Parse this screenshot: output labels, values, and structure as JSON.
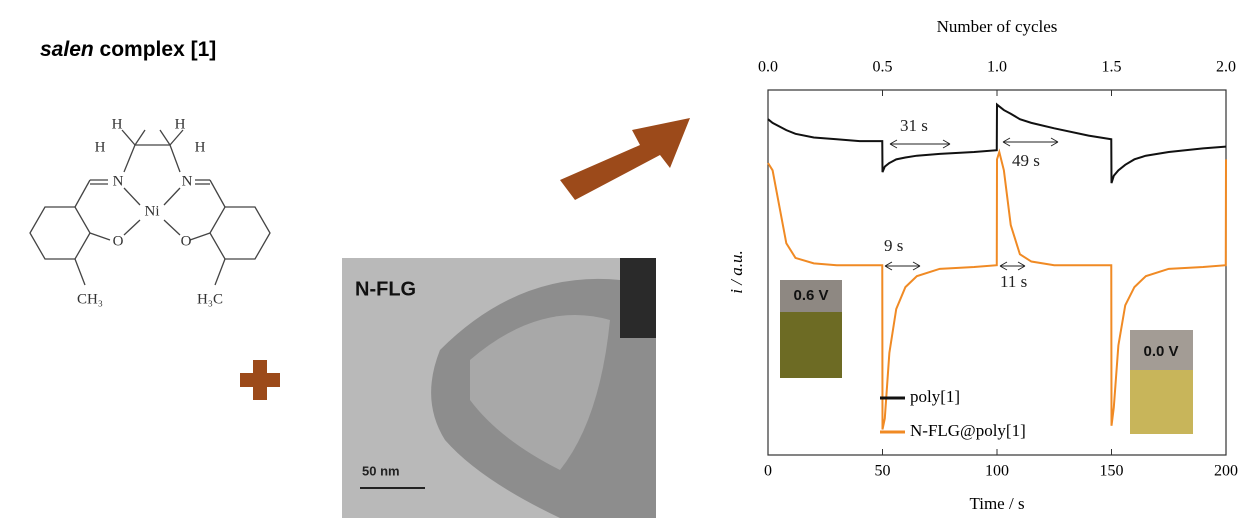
{
  "molecule": {
    "name_italic": "salen",
    "name_rest": "complex [1]",
    "atoms": [
      "H",
      "H",
      "H",
      "H",
      "N",
      "N",
      "Ni",
      "O",
      "O",
      "CH₃",
      "H₃C"
    ]
  },
  "tem": {
    "label": "N-FLG",
    "scale": "50 nm"
  },
  "chart_data": {
    "type": "line",
    "x_label": "Time / s",
    "y_label": "i / a.u.",
    "x2_label": "Number of cycles",
    "xlim": [
      0,
      200
    ],
    "xticks": [
      0,
      50,
      100,
      150,
      200
    ],
    "x2lim": [
      0,
      2
    ],
    "x2ticks": [
      {
        "value": 0,
        "label": "0.0"
      },
      {
        "value": 0.5,
        "label": "0.5"
      },
      {
        "value": 1,
        "label": "1.0"
      },
      {
        "value": 1.5,
        "label": "1.5"
      },
      {
        "value": 2,
        "label": "2.0"
      }
    ],
    "ylim": [
      0,
      1
    ],
    "x": [
      0,
      2,
      5,
      8,
      12,
      20,
      30,
      40,
      49.9,
      50,
      51,
      53,
      56,
      60,
      65,
      75,
      90,
      99.9,
      100,
      101,
      103,
      106,
      110,
      115,
      125,
      140,
      149.9,
      150,
      151,
      153,
      156,
      160,
      165,
      175,
      190,
      199.9,
      200
    ],
    "series": [
      {
        "name": "poly[1]",
        "color": "#111111",
        "values": [
          0.92,
          0.91,
          0.9,
          0.89,
          0.88,
          0.87,
          0.865,
          0.86,
          0.86,
          0.775,
          0.79,
          0.8,
          0.81,
          0.815,
          0.82,
          0.825,
          0.83,
          0.835,
          0.96,
          0.955,
          0.945,
          0.935,
          0.92,
          0.91,
          0.895,
          0.875,
          0.865,
          0.745,
          0.765,
          0.78,
          0.795,
          0.81,
          0.82,
          0.83,
          0.84,
          0.845,
          0.845
        ]
      },
      {
        "name": "N-FLG@poly[1]",
        "color": "#f08a24",
        "values": [
          0.8,
          0.78,
          0.68,
          0.58,
          0.54,
          0.525,
          0.52,
          0.52,
          0.52,
          0.07,
          0.1,
          0.28,
          0.4,
          0.46,
          0.49,
          0.51,
          0.515,
          0.52,
          0.81,
          0.83,
          0.78,
          0.63,
          0.55,
          0.53,
          0.52,
          0.52,
          0.52,
          0.08,
          0.13,
          0.3,
          0.41,
          0.46,
          0.49,
          0.51,
          0.515,
          0.52,
          0.81
        ]
      }
    ],
    "annotations": [
      "31 s",
      "49 s",
      "9 s",
      "11 s"
    ],
    "insets": [
      "0.6 V",
      "0.0 V"
    ]
  }
}
